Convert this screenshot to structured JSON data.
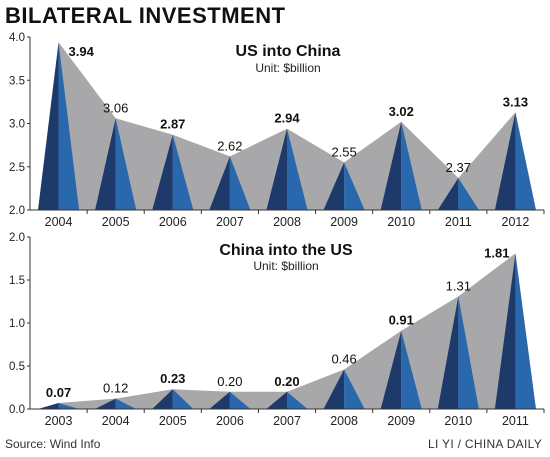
{
  "title": "BILATERAL INVESTMENT",
  "source": "Source: Wind Info",
  "credit": "LI YI / CHINA DAILY",
  "colors": {
    "gray_fill": "#a8a8aa",
    "peak_dark": "#1d3a6b",
    "peak_light": "#2a68ad",
    "axis": "#333333",
    "text": "#222222"
  },
  "chart_data": [
    {
      "type": "area",
      "title": "US into China",
      "subtitle": "Unit: $billion",
      "categories": [
        "2004",
        "2005",
        "2006",
        "2007",
        "2008",
        "2009",
        "2010",
        "2011",
        "2012"
      ],
      "values": [
        3.94,
        3.06,
        2.87,
        2.62,
        2.94,
        2.55,
        3.02,
        2.37,
        3.13
      ],
      "value_labels": [
        "3.94",
        "3.06",
        "2.87",
        "2.62",
        "2.94",
        "2.55",
        "3.02",
        "2.37",
        "3.13"
      ],
      "bold": [
        true,
        false,
        true,
        false,
        true,
        false,
        true,
        false,
        true
      ],
      "ylim": [
        2.0,
        4.0
      ],
      "yticks": [
        "2.0",
        "2.5",
        "3.0",
        "3.5",
        "4.0"
      ],
      "grid": false
    },
    {
      "type": "area",
      "title": "China into the US",
      "subtitle": "Unit: $billion",
      "categories": [
        "2003",
        "2004",
        "2005",
        "2006",
        "2007",
        "2008",
        "2009",
        "2010",
        "2011"
      ],
      "values": [
        0.07,
        0.12,
        0.23,
        0.2,
        0.2,
        0.46,
        0.91,
        1.31,
        1.81
      ],
      "value_labels": [
        "0.07",
        "0.12",
        "0.23",
        "0.20",
        "0.20",
        "0.46",
        "0.91",
        "1.31",
        "1.81"
      ],
      "bold": [
        true,
        false,
        true,
        false,
        true,
        false,
        true,
        false,
        true
      ],
      "ylim": [
        0.0,
        2.0
      ],
      "yticks": [
        "0.0",
        "0.5",
        "1.0",
        "1.5",
        "2.0"
      ],
      "grid": false
    }
  ]
}
